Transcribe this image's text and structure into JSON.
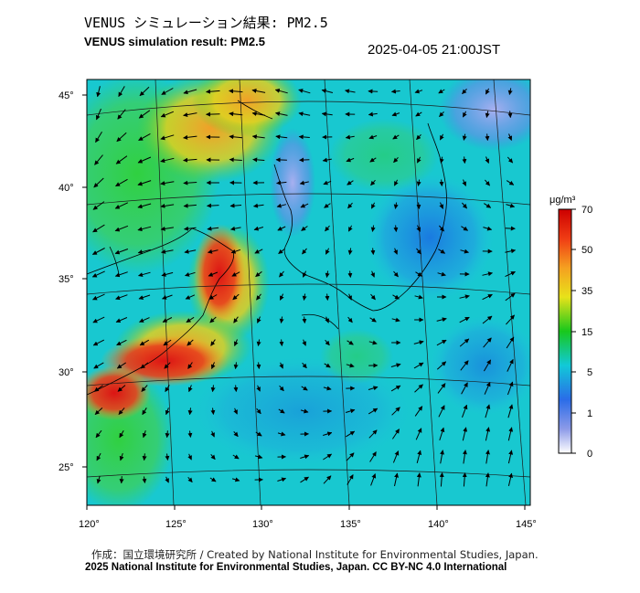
{
  "header": {
    "title_jp": "VENUS シミュレーション結果: PM2.5",
    "title_en": "VENUS simulation result: PM2.5",
    "timestamp": "2025-04-05 21:00JST"
  },
  "map": {
    "projection": "conic",
    "lon_ticks": [
      "120°",
      "125°",
      "130°",
      "135°",
      "140°",
      "145°"
    ],
    "lat_ticks": [
      "45°",
      "40°",
      "35°",
      "30°",
      "25°"
    ],
    "field": "PM2.5 concentration with wind vectors",
    "high_concentration_region": "East China coast / Yellow Sea",
    "overlay": "wind-vector-arrows"
  },
  "colorbar": {
    "unit": "μg/m³",
    "tick_labels": [
      "70",
      "50",
      "35",
      "15",
      "5",
      "1",
      "0"
    ],
    "colors": [
      "#dd1c1c",
      "#f5a020",
      "#e8e21a",
      "#18c81c",
      "#11c9d8",
      "#2a6ce8",
      "#ffffff"
    ]
  },
  "footer": {
    "credit_1": "作成：国立環境研究所 / Created by National Institute for Environmental Studies, Japan.",
    "credit_2": "2025 National Institute for Environmental Studies, Japan. CC BY-NC 4.0 International"
  }
}
